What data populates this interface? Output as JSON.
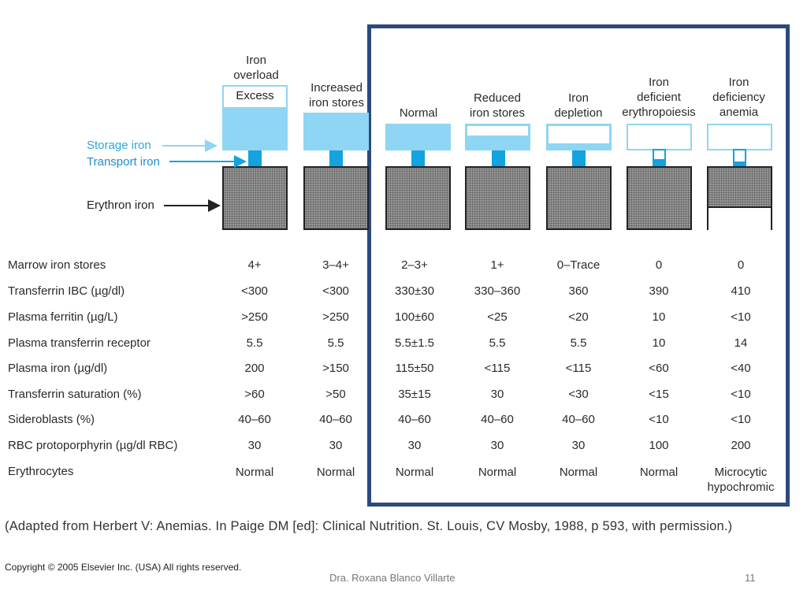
{
  "stages": [
    {
      "heading": "Iron\noverload",
      "inner_label": "Excess",
      "marrow": "4+",
      "tibc": "<300",
      "ferritin": ">250",
      "receptor": "5.5",
      "plasma_iron": "200",
      "saturation": ">60",
      "sideroblasts": "40–60",
      "protoporphyrin": "30",
      "erythrocytes": "Normal"
    },
    {
      "heading": "Increased\niron stores",
      "marrow": "3–4+",
      "tibc": "<300",
      "ferritin": ">250",
      "receptor": "5.5",
      "plasma_iron": ">150",
      "saturation": ">50",
      "sideroblasts": "40–60",
      "protoporphyrin": "30",
      "erythrocytes": "Normal"
    },
    {
      "heading": "Normal",
      "marrow": "2–3+",
      "tibc": "330±30",
      "ferritin": "100±60",
      "receptor": "5.5±1.5",
      "plasma_iron": "115±50",
      "saturation": "35±15",
      "sideroblasts": "40–60",
      "protoporphyrin": "30",
      "erythrocytes": "Normal"
    },
    {
      "heading": "Reduced\niron stores",
      "marrow": "1+",
      "tibc": "330–360",
      "ferritin": "<25",
      "receptor": "5.5",
      "plasma_iron": "<115",
      "saturation": "30",
      "sideroblasts": "40–60",
      "protoporphyrin": "30",
      "erythrocytes": "Normal"
    },
    {
      "heading": "Iron\ndepletion",
      "marrow": "0–Trace",
      "tibc": "360",
      "ferritin": "<20",
      "receptor": "5.5",
      "plasma_iron": "<115",
      "saturation": "<30",
      "sideroblasts": "40–60",
      "protoporphyrin": "30",
      "erythrocytes": "Normal"
    },
    {
      "heading": "Iron\ndeficient\nerythropoiesis",
      "marrow": "0",
      "tibc": "390",
      "ferritin": "10",
      "receptor": "10",
      "plasma_iron": "<60",
      "saturation": "<15",
      "sideroblasts": "<10",
      "protoporphyrin": "100",
      "erythrocytes": "Normal"
    },
    {
      "heading": "Iron\ndeficiency\nanemia",
      "marrow": "0",
      "tibc": "410",
      "ferritin": "<10",
      "receptor": "14",
      "plasma_iron": "<40",
      "saturation": "<10",
      "sideroblasts": "<10",
      "protoporphyrin": "200",
      "erythrocytes": "Microcytic\nhypochromic"
    }
  ],
  "legend": {
    "storage_iron": "Storage iron",
    "transport_iron": "Transport iron",
    "erythron_iron": "Erythron iron"
  },
  "rows": [
    {
      "key": "marrow",
      "label": "Marrow iron stores"
    },
    {
      "key": "tibc",
      "label": "Transferrin IBC (µg/dl)"
    },
    {
      "key": "ferritin",
      "label": "Plasma ferritin (µg/L)"
    },
    {
      "key": "receptor",
      "label": "Plasma transferrin receptor"
    },
    {
      "key": "plasma_iron",
      "label": "Plasma iron (µg/dl)"
    },
    {
      "key": "saturation",
      "label": "Transferrin saturation (%)"
    },
    {
      "key": "sideroblasts",
      "label": "Sideroblasts (%)"
    },
    {
      "key": "protoporphyrin",
      "label": "RBC protoporphyrin (µg/dl RBC)"
    },
    {
      "key": "erythrocytes",
      "label": "Erythrocytes"
    }
  ],
  "citation": "(Adapted from Herbert V: Anemias. In Paige DM [ed]: Clinical Nutrition. St. Louis, CV Mosby, 1988, p 593, with permission.)",
  "copyright": "Copyright © 2005 Elsevier Inc. (USA) All rights reserved.",
  "footer": {
    "author": "Dra. Roxana Blanco Villarte",
    "page_number": "11"
  },
  "colors": {
    "storage": "#8ed6f3",
    "transport": "#13a3df",
    "frame": "#2c4a7c",
    "legend_text": "#2aa7dc"
  }
}
